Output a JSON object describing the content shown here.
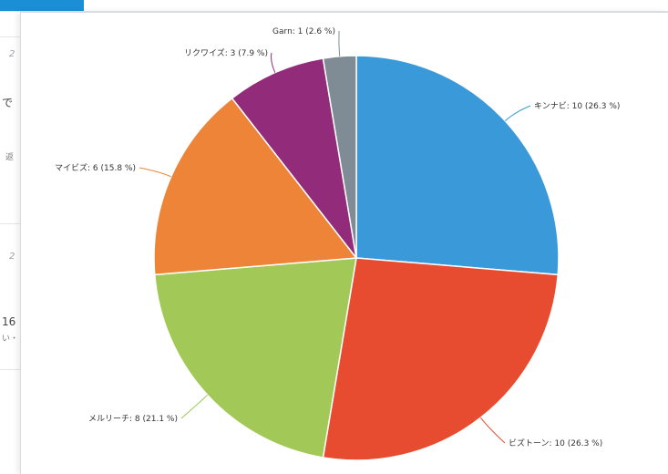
{
  "background": {
    "side_texts": [
      "2",
      "で",
      "返",
      "2",
      "16",
      "い・"
    ]
  },
  "chart_data": {
    "type": "pie",
    "start_angle_deg": 0,
    "direction": "clockwise",
    "slices": [
      {
        "name": "キンナビ",
        "value": 10,
        "percent": "26.3",
        "label": "キンナビ: 10 (26.3 %)",
        "color": "#3a9ad9"
      },
      {
        "name": "ビズトーン",
        "value": 10,
        "percent": "26.3",
        "label": "ビズトーン: 10 (26.3 %)",
        "color": "#e84c30"
      },
      {
        "name": "メルリーチ",
        "value": 8,
        "percent": "21.1",
        "label": "メルリーチ: 8 (21.1 %)",
        "color": "#a2c957"
      },
      {
        "name": "マイビズ",
        "value": 6,
        "percent": "15.8",
        "label": "マイビズ: 6 (15.8 %)",
        "color": "#ee8437"
      },
      {
        "name": "リクワイズ",
        "value": 3,
        "percent": "7.9",
        "label": "リクワイズ: 3 (7.9 %)",
        "color": "#922b7a"
      },
      {
        "name": "Garn",
        "value": 1,
        "percent": "2.6",
        "label": "Garn: 1 (2.6 %)",
        "color": "#7f8c95"
      }
    ]
  }
}
